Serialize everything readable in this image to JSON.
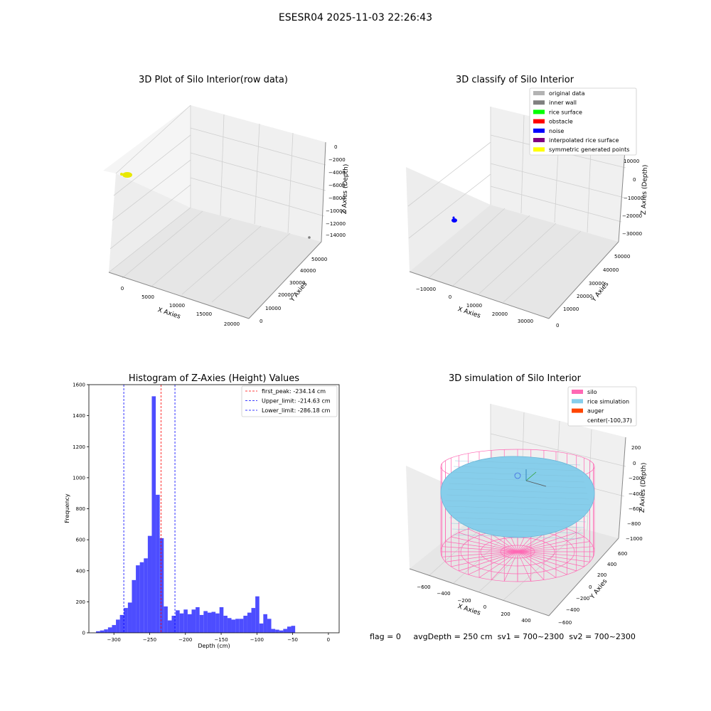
{
  "figure_title": "ESESR04 2025-11-03 22:26:43",
  "status": {
    "flag": "flag = 0",
    "avg_depth": "avgDepth = 250 cm",
    "sv1": "sv1 = 700~2300",
    "sv2": "sv2 = 700~2300"
  },
  "colors": {
    "original_data": "#b3b3b3",
    "inner_wall": "#808080",
    "rice_surface": "#00ff00",
    "obstacle": "#ff0000",
    "noise": "#0000ff",
    "interpolated": "#800080",
    "symmetric": "#ffff00",
    "silo": "#ff69b4",
    "rice_sim": "#87ceeb",
    "auger": "#ff4500",
    "hist_bar": "#4d4dff",
    "peak_line": "#ff0000",
    "limit_line": "#0000ff"
  },
  "chart_data": [
    {
      "type": "scatter",
      "title": "3D Plot of Silo Interior(row data)",
      "xlabel": "X Axies",
      "ylabel": "Y Axies",
      "zlabel": "Z Axies (Depth)",
      "x_ticks": [
        "0",
        "5000",
        "10000",
        "15000",
        "20000"
      ],
      "y_ticks": [
        "0",
        "10000",
        "20000",
        "30000",
        "40000",
        "50000"
      ],
      "z_ticks": [
        "0",
        "−2000",
        "−4000",
        "−6000",
        "−8000",
        "−10000",
        "−12000",
        "−14000"
      ],
      "xlim": [
        -2000,
        21000
      ],
      "ylim": [
        0,
        56000
      ],
      "zlim": [
        -15000,
        0
      ],
      "points": [
        {
          "x": 0,
          "y": 0,
          "z": -2300,
          "color": "yellow"
        },
        {
          "x": 20000,
          "y": 52000,
          "z": -14000,
          "color": "gray"
        }
      ]
    },
    {
      "type": "scatter",
      "title": "3D classify of Silo Interior",
      "xlabel": "X Axies",
      "ylabel": "Y Axies",
      "zlabel": "Z Axies (Depth)",
      "x_ticks": [
        "−10000",
        "0",
        "10000",
        "20000",
        "30000"
      ],
      "y_ticks": [
        "0",
        "10000",
        "20000",
        "30000",
        "40000",
        "50000"
      ],
      "z_ticks": [
        "10000",
        "0",
        "−10000",
        "−20000",
        "−30000"
      ],
      "legend_location": "upper right",
      "legend": [
        {
          "label": "original data",
          "color": "#b3b3b3"
        },
        {
          "label": "inner wall",
          "color": "#808080"
        },
        {
          "label": "rice surface",
          "color": "#00ff00"
        },
        {
          "label": "obstacle",
          "color": "#ff0000"
        },
        {
          "label": "noise",
          "color": "#0000ff"
        },
        {
          "label": "interpolated rice surface",
          "color": "#800080"
        },
        {
          "label": "symmetric generated points",
          "color": "#ffff00"
        }
      ]
    },
    {
      "type": "bar",
      "title": "Histogram of Z-Axies (Height) Values",
      "xlabel": "Depth (cm)",
      "ylabel": "Frequency",
      "xlim": [
        -335,
        15
      ],
      "ylim": [
        0,
        1600
      ],
      "x_ticks": [
        -300,
        -250,
        -200,
        -150,
        -100,
        -50,
        0
      ],
      "y_ticks": [
        0,
        200,
        400,
        600,
        800,
        1000,
        1200,
        1400,
        1600
      ],
      "bin_start": -325,
      "bin_width": 5.57,
      "values": [
        10,
        15,
        22,
        35,
        50,
        85,
        115,
        160,
        195,
        340,
        435,
        455,
        480,
        625,
        1525,
        890,
        610,
        170,
        80,
        110,
        145,
        125,
        150,
        120,
        150,
        165,
        115,
        140,
        130,
        135,
        125,
        165,
        110,
        95,
        85,
        90,
        90,
        110,
        130,
        160,
        235,
        60,
        120,
        90,
        25,
        20,
        15,
        25,
        40,
        45
      ],
      "vlines": [
        {
          "label": "first_peak: -234.14 cm",
          "x": -234.14,
          "color": "#ff0000"
        },
        {
          "label": "Upper_limit: -214.63 cm",
          "x": -214.63,
          "color": "#0000ff"
        },
        {
          "label": "Lower_limit: -286.18 cm",
          "x": -286.18,
          "color": "#0000ff"
        }
      ]
    },
    {
      "type": "scatter",
      "title": "3D simulation of Silo Interior",
      "xlabel": "X Axies",
      "ylabel": "Y Axies",
      "zlabel": "Z Axies (Depth)",
      "x_ticks": [
        "−600",
        "−400",
        "−200",
        "0",
        "200",
        "400"
      ],
      "y_ticks": [
        "−600",
        "−400",
        "−200",
        "0",
        "200",
        "400",
        "600"
      ],
      "z_ticks": [
        "200",
        "0",
        "−200",
        "−400",
        "−600",
        "−800",
        "−1000"
      ],
      "legend_location": "upper right",
      "legend": [
        {
          "label": "silo",
          "color": "#ff69b4"
        },
        {
          "label": "rice simulation",
          "color": "#87ceeb"
        },
        {
          "label": "auger",
          "color": "#ff4500"
        },
        {
          "label": "center(-100,37)",
          "color": ""
        }
      ]
    }
  ]
}
